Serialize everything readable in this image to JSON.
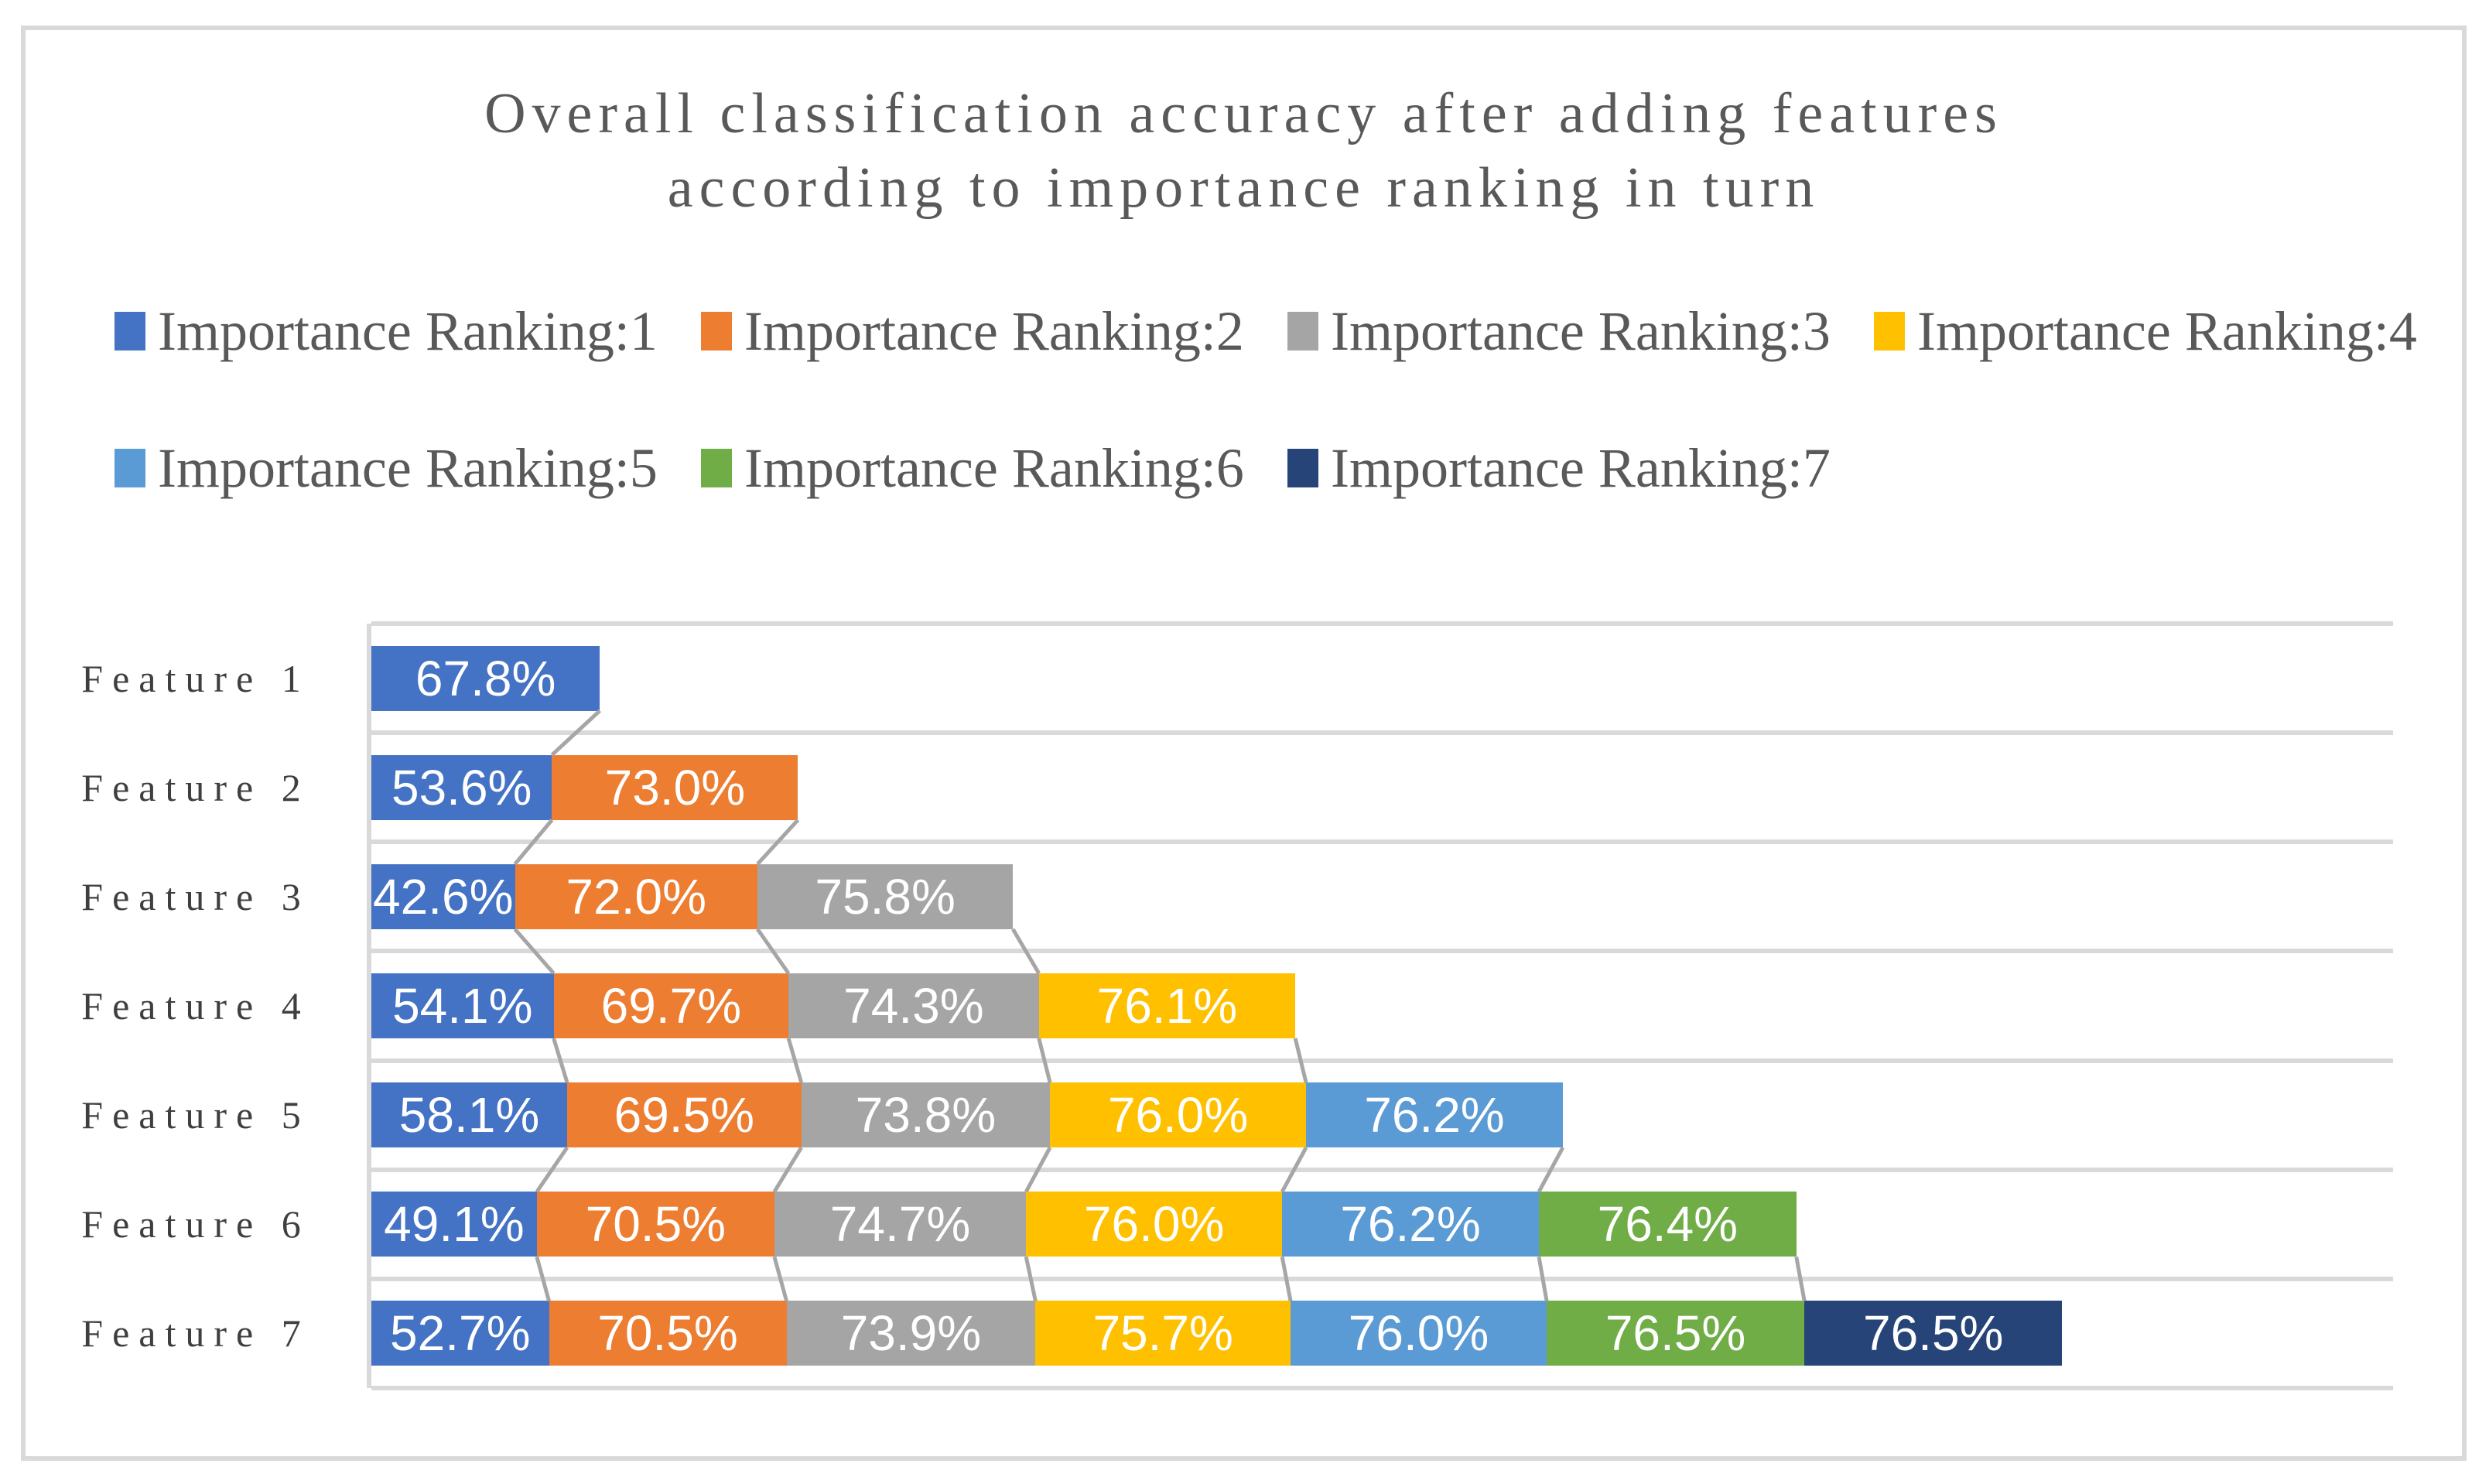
{
  "title": {
    "line1": "Overall classification accuracy after adding features",
    "line2": "according to importance ranking in turn"
  },
  "chart_data": {
    "type": "bar",
    "orientation": "horizontal-stacked",
    "title": "Overall classification accuracy after adding features according to importance ranking in turn",
    "categories": [
      "Feature 1",
      "Feature 2",
      "Feature 3",
      "Feature 4",
      "Feature 5",
      "Feature 6",
      "Feature 7"
    ],
    "series": [
      {
        "name": "Importance Ranking:1",
        "color": "#4472C4",
        "values": [
          67.8,
          53.6,
          42.6,
          54.1,
          58.1,
          49.1,
          52.7
        ]
      },
      {
        "name": "Importance Ranking:2",
        "color": "#ED7D31",
        "values": [
          null,
          73.0,
          72.0,
          69.7,
          69.5,
          70.5,
          70.5
        ]
      },
      {
        "name": "Importance Ranking:3",
        "color": "#A5A5A5",
        "values": [
          null,
          null,
          75.8,
          74.3,
          73.8,
          74.7,
          73.9
        ]
      },
      {
        "name": "Importance Ranking:4",
        "color": "#FFC000",
        "values": [
          null,
          null,
          null,
          76.1,
          76.0,
          76.0,
          75.7
        ]
      },
      {
        "name": "Importance Ranking:5",
        "color": "#5B9BD5",
        "values": [
          null,
          null,
          null,
          null,
          76.2,
          76.2,
          76.0
        ]
      },
      {
        "name": "Importance Ranking:6",
        "color": "#70AD47",
        "values": [
          null,
          null,
          null,
          null,
          null,
          76.4,
          76.5
        ]
      },
      {
        "name": "Importance Ranking:7",
        "color": "#264478",
        "values": [
          null,
          null,
          null,
          null,
          null,
          null,
          76.5
        ]
      }
    ],
    "value_unit": "%",
    "value_decimals": 1,
    "xlim": [
      0,
      600
    ],
    "grid": true,
    "gridline_orientation": "horizontal",
    "legend_position": "top",
    "legend_rows": [
      [
        0,
        1,
        2,
        3
      ],
      [
        4,
        5,
        6
      ]
    ],
    "connector_lines": true
  },
  "style_colors": {
    "frame_border": "#D9D9D9",
    "gridline": "#D9D9D9",
    "axis_line": "#D9D9D9",
    "connector_line": "#A6A6A6",
    "title_text": "#595959",
    "legend_text": "#595959",
    "category_text": "#3F3F3F",
    "bar_label_text": "#FFFFFF"
  }
}
